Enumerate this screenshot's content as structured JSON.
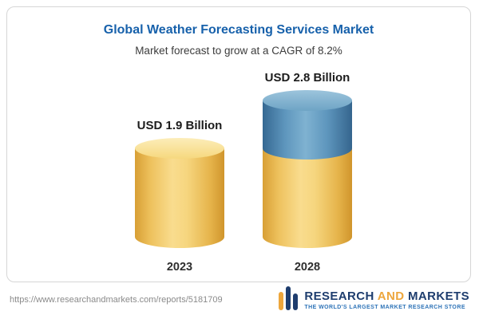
{
  "chart_data": {
    "type": "bar",
    "title": "Global Weather Forecasting Services Market",
    "subtitle": "Market forecast to grow at a CAGR of 8.2%",
    "categories": [
      "2023",
      "2028"
    ],
    "values": [
      1.9,
      2.8
    ],
    "unit": "USD Billion",
    "bar_labels": [
      "USD 1.9 Billion",
      "USD 2.8 Billion"
    ],
    "cagr_percent": 8.2,
    "colors": {
      "base_segment": "#F2CE68",
      "growth_segment": "#5E96BD",
      "title": "#1761AB"
    },
    "legend": "none",
    "grid": "off",
    "ylim": [
      0,
      3
    ]
  },
  "footer": {
    "url": "https://www.researchandmarkets.com/reports/5181709",
    "logo": {
      "word_research": "RESEARCH",
      "word_and": "AND",
      "word_markets": "MARKETS",
      "tagline": "THE WORLD'S LARGEST MARKET RESEARCH STORE"
    }
  }
}
